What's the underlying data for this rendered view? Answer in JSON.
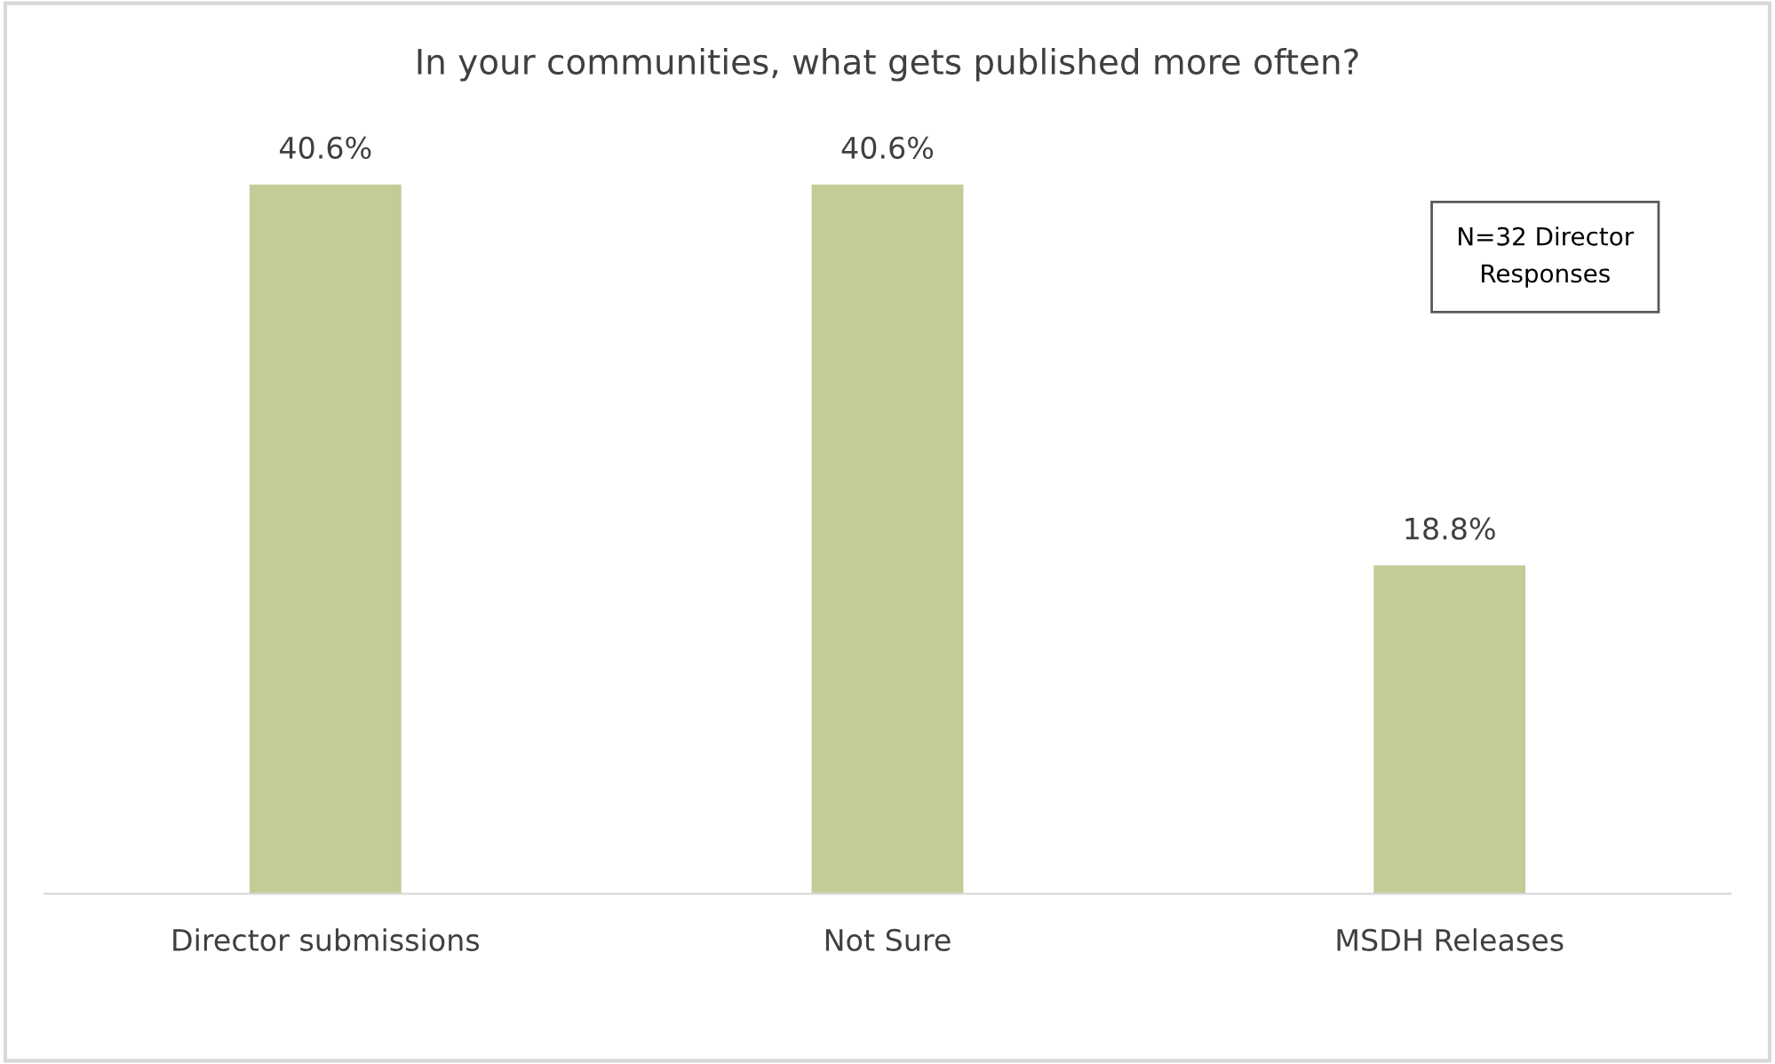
{
  "chart_data": {
    "type": "bar",
    "title": "In your communities, what gets published more often?",
    "categories": [
      "Director submissions",
      "Not Sure",
      "MSDH Releases"
    ],
    "values": [
      40.6,
      40.6,
      18.8
    ],
    "value_labels": [
      "40.6%",
      "40.6%",
      "18.8%"
    ],
    "color": "#c3cc96",
    "tick_labels": "x",
    "grid": false,
    "legend": false,
    "annotations": [
      "N=32 Director\nResponses"
    ]
  }
}
